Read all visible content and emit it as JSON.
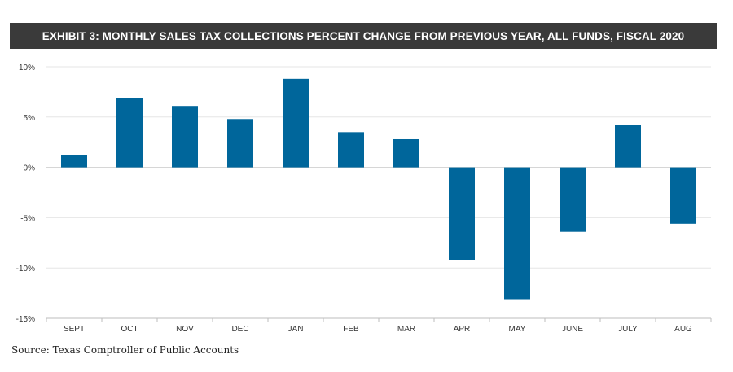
{
  "colors": {
    "bar": "#00669b",
    "title_bg": "#3a3a3a",
    "grid": "#e6e6e6",
    "axis": "#bdbdbd",
    "text": "#333333"
  },
  "chart_data": {
    "type": "bar",
    "title": "EXHIBIT 3: MONTHLY SALES TAX COLLECTIONS PERCENT CHANGE FROM PREVIOUS YEAR, ALL FUNDS, FISCAL 2020",
    "categories": [
      "SEPT",
      "OCT",
      "NOV",
      "DEC",
      "JAN",
      "FEB",
      "MAR",
      "APR",
      "MAY",
      "JUNE",
      "JULY",
      "AUG"
    ],
    "values": [
      1.2,
      6.9,
      6.1,
      4.8,
      8.8,
      3.5,
      2.8,
      -9.2,
      -13.1,
      -6.4,
      4.2,
      -5.6
    ],
    "ylim": [
      -15,
      10
    ],
    "yticks": [
      10,
      5,
      0,
      -5,
      -10,
      -15
    ],
    "ytick_labels": [
      "10%",
      "5%",
      "0%",
      "-5%",
      "-10%",
      "-15%"
    ],
    "grid": true,
    "legend": "none"
  },
  "source": "Source: Texas Comptroller of Public Accounts"
}
